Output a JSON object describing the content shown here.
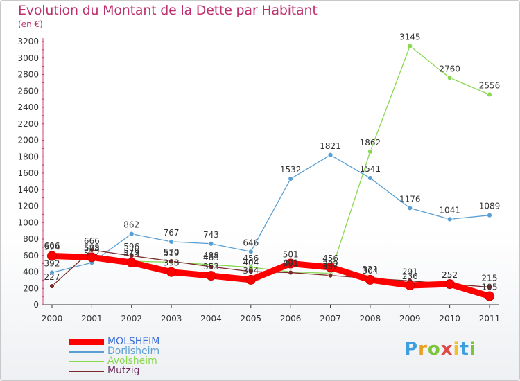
{
  "title": "Evolution du Montant de la Dette par Habitant",
  "unit_label": "(en €)",
  "brand": {
    "letters": [
      "P",
      "r",
      "o",
      "x",
      "i",
      "t",
      "i"
    ],
    "colors": [
      "#3d9ee0",
      "#e8a020",
      "#7cc43a",
      "#e04848",
      "#f0c030",
      "#3d9ee0",
      "#7cc43a"
    ]
  },
  "chart_data": {
    "type": "line",
    "x": [
      "2000",
      "2001",
      "2002",
      "2003",
      "2004",
      "2005",
      "2006",
      "2007",
      "2008",
      "2009",
      "2010",
      "2011"
    ],
    "ylim": [
      0,
      3200
    ],
    "yticks": [
      0,
      200,
      400,
      600,
      800,
      1000,
      1200,
      1400,
      1600,
      1800,
      2000,
      2200,
      2400,
      2600,
      2800,
      3000,
      3200
    ],
    "grid": false,
    "legend_position": "bottom-left",
    "series": [
      {
        "name": "MOLSHEIM",
        "color": "#ff0000",
        "values": [
          594,
          578,
          513,
          398,
          353,
          304,
          501,
          456,
          304,
          236,
          252,
          105
        ]
      },
      {
        "name": "Dorlisheim",
        "color": "#5a9fd4",
        "values": [
          392,
          512,
          862,
          767,
          743,
          646,
          1532,
          1821,
          1541,
          1176,
          1041,
          1089
        ]
      },
      {
        "name": "Avolsheim",
        "color": "#88d850",
        "values": [
          606,
          585,
          529,
          519,
          488,
          456,
          401,
          382,
          1862,
          3145,
          2760,
          2556
        ]
      },
      {
        "name": "Mutzig",
        "color": "#7a2a2a",
        "values": [
          227,
          666,
          596,
          530,
          463,
          404,
          391,
          357,
          321,
          291,
          252,
          215
        ]
      }
    ]
  }
}
